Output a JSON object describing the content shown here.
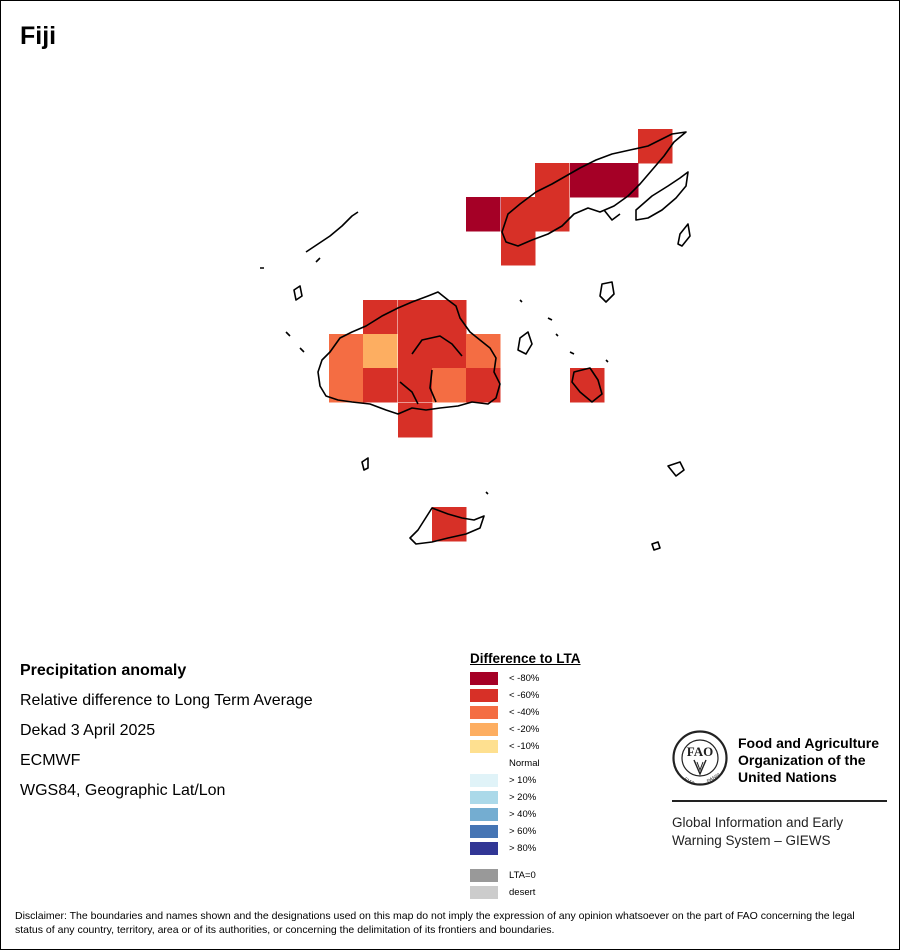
{
  "map": {
    "title": "Fiji",
    "colors": {
      "lt80": "#a50026",
      "lt60": "#d73027",
      "lt40": "#f46d43",
      "lt20": "#fdae61",
      "lt10": "#fee090",
      "gt10": "#e0f3f8",
      "gt20": "#abd9e9",
      "gt40": "#74add1",
      "gt60": "#4575b4",
      "gt80": "#313695",
      "lta0": "#999999",
      "desert": "#cccccc"
    }
  },
  "info": {
    "heading": "Precipitation anomaly",
    "line1": "Relative difference to Long Term Average",
    "line2": "Dekad 3 April 2025",
    "line3": "ECMWF",
    "line4": "WGS84, Geographic Lat/Lon"
  },
  "legend": {
    "title": "Difference to LTA",
    "items": [
      {
        "label": "< -80%",
        "color": "#a50026"
      },
      {
        "label": "< -60%",
        "color": "#d73027"
      },
      {
        "label": "< -40%",
        "color": "#f46d43"
      },
      {
        "label": "< -20%",
        "color": "#fdae61"
      },
      {
        "label": "< -10%",
        "color": "#fee090"
      },
      {
        "label": "Normal",
        "color": "#ffffff"
      },
      {
        "label": "> 10%",
        "color": "#e0f3f8"
      },
      {
        "label": "> 20%",
        "color": "#abd9e9"
      },
      {
        "label": "> 40%",
        "color": "#74add1"
      },
      {
        "label": "> 60%",
        "color": "#4575b4"
      },
      {
        "label": "> 80%",
        "color": "#313695"
      }
    ],
    "extra": [
      {
        "label": "LTA=0",
        "color": "#999999"
      },
      {
        "label": "desert",
        "color": "#cccccc"
      }
    ]
  },
  "fao": {
    "name_line1": "Food and Agriculture",
    "name_line2": "Organization of the",
    "name_line3": "United Nations",
    "giews_line1": "Global Information and Early",
    "giews_line2": "Warning System – GIEWS",
    "logo_text": "FAO FIAT PANIS"
  },
  "disclaimer": "Disclaimer: The boundaries and names shown and the designations used on this map do not imply the expression of any opinion whatsoever on the part of FAO concerning the legal status of any country, territory, area or of its authorities, or concerning the delimitation of its frontiers and boundaries."
}
